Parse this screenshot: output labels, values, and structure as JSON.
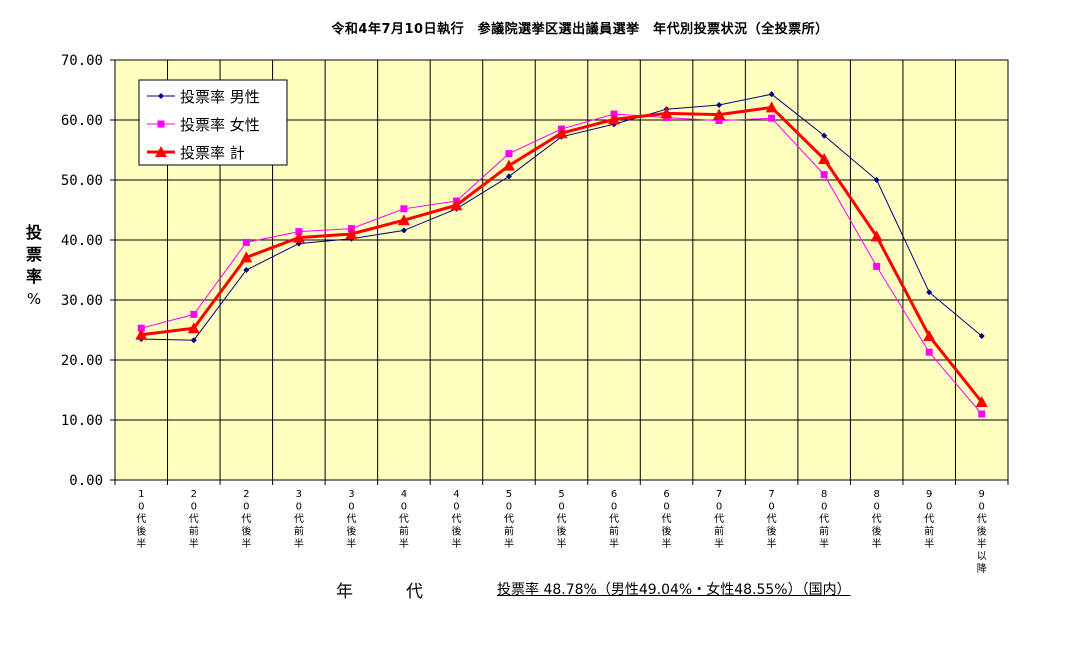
{
  "chart_data": {
    "type": "line",
    "title": "令和4年7月10日執行　参議院選挙区選出議員選挙　年代別投票状況（全投票所）",
    "xlabel": "年　代",
    "ylabel": [
      "投",
      "票",
      "率",
      "%"
    ],
    "ylim": [
      0,
      70
    ],
    "yticks": [
      "0.00",
      "10.00",
      "20.00",
      "30.00",
      "40.00",
      "50.00",
      "60.00",
      "70.00"
    ],
    "grid": true,
    "legend_position": "top-left",
    "categories": [
      [
        "1",
        "0",
        "代",
        "後",
        "半"
      ],
      [
        "2",
        "0",
        "代",
        "前",
        "半"
      ],
      [
        "2",
        "0",
        "代",
        "後",
        "半"
      ],
      [
        "3",
        "0",
        "代",
        "前",
        "半"
      ],
      [
        "3",
        "0",
        "代",
        "後",
        "半"
      ],
      [
        "4",
        "0",
        "代",
        "前",
        "半"
      ],
      [
        "4",
        "0",
        "代",
        "後",
        "半"
      ],
      [
        "5",
        "0",
        "代",
        "前",
        "半"
      ],
      [
        "5",
        "0",
        "代",
        "後",
        "半"
      ],
      [
        "6",
        "0",
        "代",
        "前",
        "半"
      ],
      [
        "6",
        "0",
        "代",
        "後",
        "半"
      ],
      [
        "7",
        "0",
        "代",
        "前",
        "半"
      ],
      [
        "7",
        "0",
        "代",
        "後",
        "半"
      ],
      [
        "8",
        "0",
        "代",
        "前",
        "半"
      ],
      [
        "8",
        "0",
        "代",
        "後",
        "半"
      ],
      [
        "9",
        "0",
        "代",
        "前",
        "半"
      ],
      [
        "9",
        "0",
        "代",
        "後",
        "半",
        "以",
        "降"
      ]
    ],
    "series": [
      {
        "name": "投票率 男性",
        "color": "#000080",
        "marker": "diamond",
        "values": [
          23.5,
          23.3,
          35.0,
          39.4,
          40.2,
          41.6,
          45.2,
          50.6,
          57.2,
          59.3,
          61.8,
          62.5,
          64.3,
          57.4,
          50.0,
          31.3,
          24.0
        ]
      },
      {
        "name": "投票率 女性",
        "color": "#ff00ff",
        "marker": "square",
        "values": [
          25.3,
          27.6,
          39.6,
          41.4,
          41.9,
          45.2,
          46.5,
          54.4,
          58.5,
          61.0,
          60.4,
          59.9,
          60.3,
          50.9,
          35.6,
          21.3,
          11.0
        ]
      },
      {
        "name": "投票率 計",
        "color": "#ff0000",
        "marker": "triangle",
        "values": [
          24.2,
          25.3,
          37.1,
          40.4,
          41.0,
          43.3,
          45.8,
          52.4,
          57.8,
          60.1,
          61.1,
          60.9,
          62.1,
          53.5,
          40.6,
          24.0,
          13.0
        ]
      }
    ],
    "note": "投票率 48.78%（男性49.04%・女性48.55%）（国内）"
  }
}
